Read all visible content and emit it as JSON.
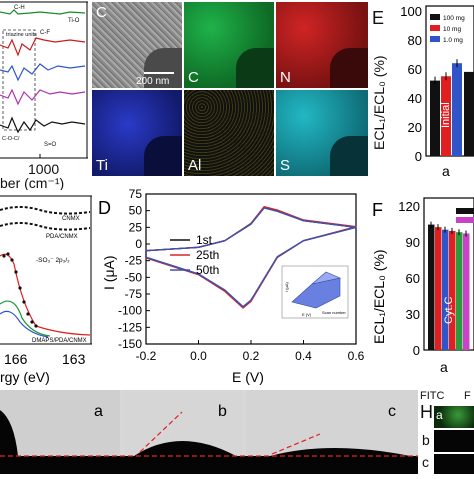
{
  "colors": {
    "curve1": "#111111",
    "curve2": "#d62728",
    "curve3": "#3b52b4",
    "bar_black": "#111111",
    "bar_red": "#e02020",
    "bar_blue": "#2f55c8",
    "bar_green": "#2a9b3a",
    "bar_magenta": "#c843c8",
    "map_C": "#1a9a3a",
    "map_N": "#c81e1e",
    "map_Ti": "#1e2aa6",
    "map_Al": "#c8c820",
    "map_S": "#1ea6b4"
  },
  "panelA": {
    "annotations": {
      "ch_label": "C-H",
      "ti_o": "Ti-O",
      "triazine": "triazine units",
      "cf": "C-F",
      "c_o_c": "C-O-C/",
      "s_o": "S=O"
    },
    "xtick": "1000",
    "xlabel": "ber (cm⁻¹)"
  },
  "panelB": {
    "labels": {
      "cnmx": "CNMX",
      "pda": "PDA/CNMX",
      "so3": "-SO₃⁻ 2p₃/₂",
      "dmaps": "DMAPS/PDA/CNMX"
    },
    "xticks": [
      "166",
      "163"
    ],
    "xlabel": "rgy (eV)"
  },
  "panelC": {
    "letter": "C",
    "scale": "200 nm",
    "maps": {
      "c": "C",
      "n": "N",
      "ti": "Ti",
      "al": "Al",
      "s": "S"
    }
  },
  "panelD": {
    "letter": "D",
    "xlabel": "E (V)",
    "ylabel": "I (μA)",
    "xticks": [
      "-0.2",
      "0.0",
      "0.2",
      "0.4",
      "0.6"
    ],
    "yticks": [
      "75",
      "50",
      "25",
      "0",
      "-25",
      "-50",
      "-75",
      "-100",
      "-125",
      "-150"
    ],
    "legend": [
      "1st",
      "25th",
      "50th"
    ],
    "inset_labels": {
      "y": "I (μA)",
      "x": "E (V)",
      "z": "Scan number"
    }
  },
  "panelE": {
    "letter": "E",
    "ylabel": "ECL₁/ECL₀ (%)",
    "yticks": [
      "100",
      "80",
      "60",
      "40",
      "20",
      "0"
    ],
    "legend": [
      "100 mg",
      "10  mg",
      "1.0 mg"
    ],
    "bar_text": "Initial",
    "xtick": "a"
  },
  "panelF": {
    "letter": "F",
    "ylabel": "ECL₁/ECL₀ (%)",
    "yticks": [
      "120",
      "90",
      "60",
      "30",
      "0"
    ],
    "bar_text": "Cyt.C",
    "xtick": "a"
  },
  "panelG": {
    "labels": {
      "a": "a",
      "b": "b",
      "c": "c"
    }
  },
  "panelH": {
    "letter": "H",
    "fitc": "FITC",
    "f": "F",
    "rows": [
      "a",
      "b",
      "c"
    ]
  },
  "chart_data": [
    {
      "type": "line",
      "title": "",
      "xlabel": "E (V)",
      "ylabel": "I (μA)",
      "xlim": [
        -0.2,
        0.6
      ],
      "ylim": [
        -150,
        75
      ],
      "series": [
        {
          "name": "1st",
          "x": [
            -0.2,
            0.0,
            0.1,
            0.2,
            0.25,
            0.3,
            0.4,
            0.6,
            0.4,
            0.3,
            0.2,
            0.17,
            0.1,
            0.0,
            -0.2
          ],
          "y": [
            -10,
            -5,
            5,
            30,
            55,
            50,
            35,
            25,
            5,
            -20,
            -85,
            -95,
            -70,
            -45,
            -20
          ]
        },
        {
          "name": "25th",
          "x": [
            -0.2,
            0.0,
            0.1,
            0.2,
            0.25,
            0.3,
            0.4,
            0.6,
            0.4,
            0.3,
            0.2,
            0.17,
            0.1,
            0.0,
            -0.2
          ],
          "y": [
            -10,
            -5,
            5,
            31,
            56,
            51,
            36,
            26,
            5,
            -20,
            -86,
            -96,
            -71,
            -46,
            -21
          ]
        },
        {
          "name": "50th",
          "x": [
            -0.2,
            0.0,
            0.1,
            0.2,
            0.25,
            0.3,
            0.4,
            0.6,
            0.4,
            0.3,
            0.2,
            0.17,
            0.1,
            0.0,
            -0.2
          ],
          "y": [
            -10,
            -5,
            5,
            30,
            54,
            49,
            35,
            25,
            5,
            -19,
            -84,
            -94,
            -69,
            -45,
            -20
          ]
        }
      ]
    },
    {
      "type": "bar",
      "title": "",
      "ylabel": "ECL₁/ECL₀ (%)",
      "ylim": [
        0,
        100
      ],
      "categories": [
        "a"
      ],
      "series": [
        {
          "name": "100 mg",
          "values": [
            52
          ]
        },
        {
          "name": "10  mg",
          "values": [
            55
          ]
        },
        {
          "name": "1.0 mg",
          "values": [
            64
          ]
        }
      ]
    },
    {
      "type": "bar",
      "title": "",
      "ylabel": "ECL₁/ECL₀ (%)",
      "ylim": [
        0,
        120
      ],
      "categories": [
        "a"
      ],
      "series": [
        {
          "values": [
            99
          ]
        },
        {
          "values": [
            97
          ]
        },
        {
          "values": [
            95
          ]
        },
        {
          "values": [
            94
          ]
        },
        {
          "values": [
            93
          ]
        },
        {
          "values": [
            92
          ]
        }
      ]
    }
  ]
}
